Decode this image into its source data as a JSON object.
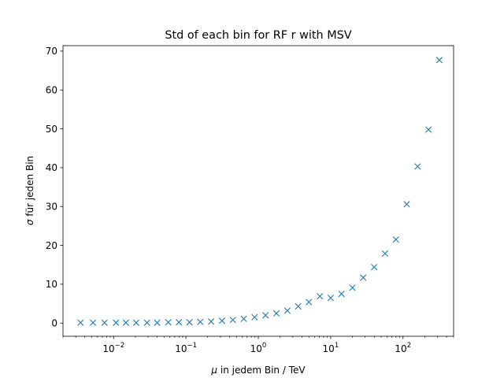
{
  "chart_data": {
    "type": "scatter",
    "title": "Std of each bin for RF r with MSV",
    "xlabel_symbol": "μ",
    "xlabel_rest": " in jedem Bin / TeV",
    "ylabel_symbol": "σ",
    "ylabel_rest": " für jeden Bin",
    "x_scale": "log",
    "xlim": [
      0.002,
      500
    ],
    "ylim": [
      -3.4,
      71.4
    ],
    "marker": "x",
    "series_color": "#1f77b4",
    "grid": false,
    "x_major_ticks": [
      {
        "value": 0.01,
        "base": "10",
        "exp": "−2"
      },
      {
        "value": 0.1,
        "base": "10",
        "exp": "−1"
      },
      {
        "value": 1,
        "base": "10",
        "exp": "0"
      },
      {
        "value": 10,
        "base": "10",
        "exp": "1"
      },
      {
        "value": 100,
        "base": "10",
        "exp": "2"
      }
    ],
    "y_ticks": [
      {
        "value": 0,
        "label": "0"
      },
      {
        "value": 10,
        "label": "10"
      },
      {
        "value": 20,
        "label": "20"
      },
      {
        "value": 30,
        "label": "30"
      },
      {
        "value": 40,
        "label": "40"
      },
      {
        "value": 50,
        "label": "50"
      },
      {
        "value": 60,
        "label": "60"
      },
      {
        "value": 70,
        "label": "70"
      }
    ],
    "series": [
      {
        "x": [
          0.0035,
          0.0052,
          0.0075,
          0.0108,
          0.0148,
          0.0205,
          0.029,
          0.04,
          0.057,
          0.08,
          0.112,
          0.158,
          0.223,
          0.315,
          0.445,
          0.63,
          0.89,
          1.26,
          1.78,
          2.52,
          3.56,
          5.0,
          7.1,
          10.0,
          14.1,
          20.0,
          28.2,
          39.9,
          56.4,
          79.7,
          112.6,
          159.2,
          225.0,
          318.0
        ],
        "y": [
          0.1,
          0.1,
          0.1,
          0.1,
          0.1,
          0.1,
          0.1,
          0.1,
          0.2,
          0.2,
          0.2,
          0.3,
          0.4,
          0.6,
          0.8,
          1.1,
          1.5,
          2.0,
          2.5,
          3.2,
          4.3,
          5.4,
          6.9,
          6.5,
          7.5,
          9.1,
          11.7,
          14.4,
          17.9,
          21.5,
          30.6,
          40.3,
          49.8,
          67.7
        ]
      }
    ]
  }
}
